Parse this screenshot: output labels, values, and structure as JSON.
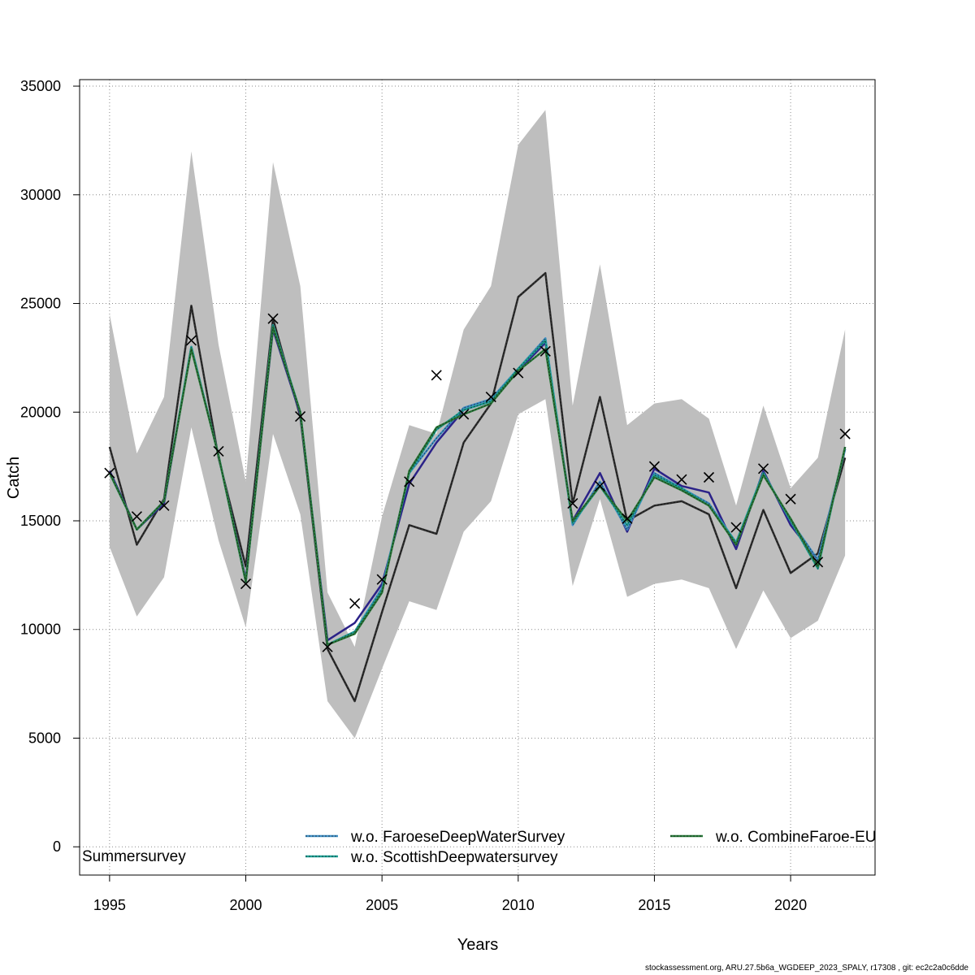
{
  "chart_data": {
    "type": "line",
    "xlabel": "Years",
    "ylabel": "Catch",
    "xlim": [
      1993.9,
      2023.1
    ],
    "ylim": [
      -1300,
      35300
    ],
    "x_ticks": [
      1995,
      2000,
      2005,
      2010,
      2015,
      2020
    ],
    "y_ticks": [
      0,
      5000,
      10000,
      15000,
      20000,
      25000,
      30000,
      35000
    ],
    "grid": true,
    "x": [
      1995,
      1996,
      1997,
      1998,
      1999,
      2000,
      2001,
      2002,
      2003,
      2004,
      2005,
      2006,
      2007,
      2008,
      2009,
      2010,
      2011,
      2012,
      2013,
      2014,
      2015,
      2016,
      2017,
      2018,
      2019,
      2020,
      2021,
      2022
    ],
    "band": {
      "color": "#bebebe",
      "upper": [
        24500,
        18100,
        20700,
        32000,
        23100,
        16800,
        31500,
        25800,
        11700,
        9200,
        15200,
        19400,
        19000,
        23800,
        25800,
        32300,
        33900,
        20300,
        26800,
        19400,
        20400,
        20600,
        19700,
        15700,
        20300,
        16500,
        17900,
        23800
      ],
      "lower": [
        13800,
        10600,
        12400,
        19300,
        14100,
        10100,
        19000,
        15300,
        6700,
        5000,
        8200,
        11300,
        10900,
        14500,
        15900,
        19900,
        20600,
        12000,
        16000,
        11500,
        12100,
        12300,
        11900,
        9100,
        11800,
        9600,
        10400,
        13400
      ]
    },
    "series": [
      {
        "name": "",
        "color": "#303030",
        "dashed": true,
        "values": [
          18400,
          13900,
          16000,
          24900,
          17900,
          12900,
          24300,
          19800,
          9100,
          6700,
          10800,
          14800,
          14400,
          18600,
          20400,
          25300,
          26400,
          15800,
          20700,
          15000,
          15700,
          15900,
          15300,
          11900,
          15500,
          12600,
          13500,
          17900
        ]
      },
      {
        "name": "",
        "color": "#2b2288",
        "dashed": false,
        "values": [
          17300,
          14600,
          15800,
          23000,
          18000,
          12300,
          23800,
          19900,
          9500,
          10300,
          12100,
          16700,
          18600,
          20100,
          20500,
          21900,
          23200,
          15000,
          17200,
          14500,
          17400,
          16600,
          16300,
          13700,
          17300,
          14800,
          13200,
          18300
        ]
      },
      {
        "name": "w.o. FaroeseDeepWaterSurvey",
        "color": "#3f8fc6",
        "dashed": true,
        "values": [
          17200,
          14600,
          15900,
          23000,
          18000,
          12200,
          24000,
          20000,
          9300,
          9900,
          11900,
          17200,
          18800,
          20200,
          20600,
          22000,
          23400,
          14800,
          16800,
          14600,
          17200,
          16500,
          15800,
          14000,
          17200,
          15000,
          13200,
          18300
        ]
      },
      {
        "name": "w.o. ScottishDeepwatersurvey",
        "color": "#1fa196",
        "dashed": true,
        "values": [
          17200,
          14600,
          15900,
          23000,
          18000,
          12200,
          24000,
          20000,
          9300,
          9900,
          11800,
          17200,
          19200,
          20100,
          20500,
          22000,
          23300,
          14900,
          16600,
          14800,
          17100,
          16500,
          15700,
          14000,
          17200,
          15000,
          12800,
          18400
        ]
      },
      {
        "name": "w.o. CombineFaroe-EU",
        "color": "#2a7a3a",
        "dashed": true,
        "values": [
          17200,
          14600,
          15900,
          22900,
          18000,
          12200,
          23900,
          20000,
          9300,
          9800,
          11700,
          17300,
          19300,
          19900,
          20400,
          21900,
          22900,
          15000,
          16600,
          15000,
          17000,
          16400,
          15700,
          13900,
          17100,
          15100,
          12900,
          18400
        ]
      }
    ],
    "observations": {
      "marker": "x",
      "values": [
        17200,
        15200,
        15700,
        23300,
        18200,
        12100,
        24300,
        19800,
        9200,
        11200,
        12300,
        16800,
        21700,
        19900,
        20700,
        21800,
        22800,
        15800,
        16600,
        15100,
        17500,
        16900,
        17000,
        14700,
        17400,
        16000,
        13100,
        19000
      ]
    },
    "legend": {
      "placement": "bottom",
      "entries": [
        "w.o. FaroeseDeepWaterSurvey",
        "w.o. ScottishDeepwatersurvey",
        "w.o. CombineFaroe-EU"
      ]
    },
    "annotation": "Summersurvey"
  },
  "footer": "stockassessment.org, ARU.27.5b6a_WGDEEP_2023_SPALY, r17308 , git: ec2c2a0c6dde"
}
